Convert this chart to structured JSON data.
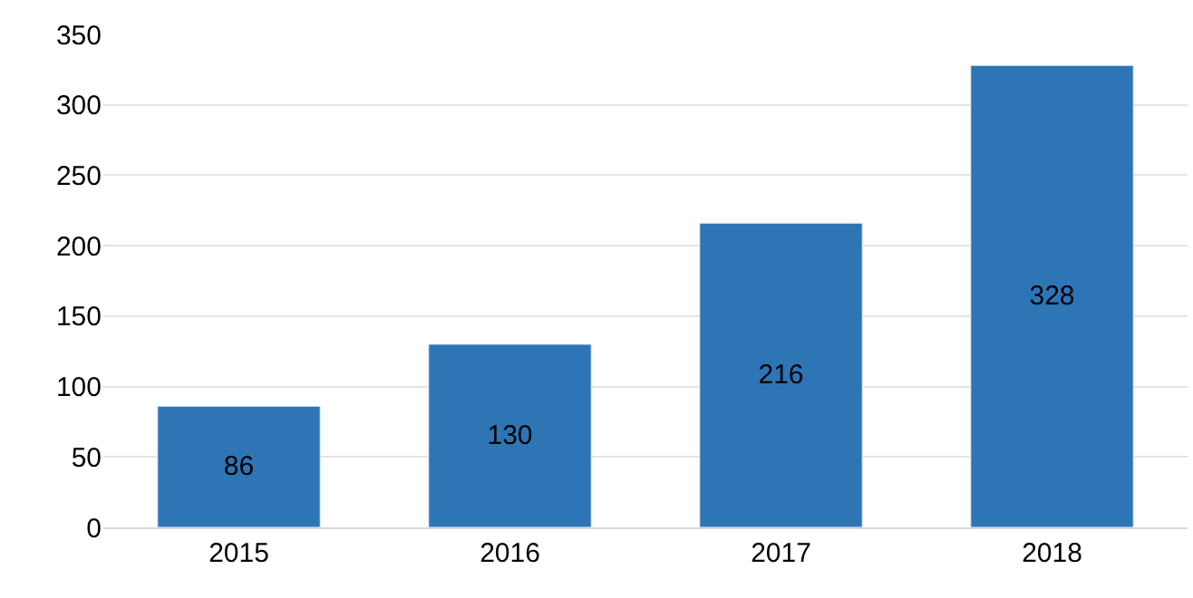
{
  "chart_data": {
    "type": "bar",
    "categories": [
      "2015",
      "2016",
      "2017",
      "2018"
    ],
    "values": [
      86,
      130,
      216,
      328
    ],
    "color": "#2e75b6",
    "ylim": [
      0,
      350
    ],
    "yticks": [
      0,
      50,
      100,
      150,
      200,
      250,
      300,
      350
    ],
    "grid": "y",
    "data_labels": true,
    "legend": false
  }
}
